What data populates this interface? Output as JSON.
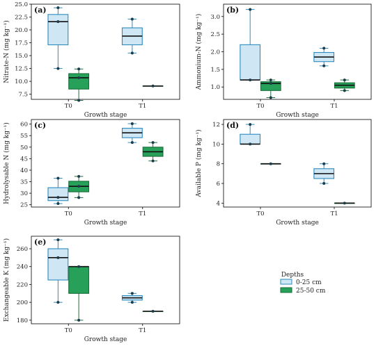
{
  "legend": {
    "title": "Depths",
    "entries": [
      {
        "label": "0-25 cm",
        "fill": "#cfe6f5",
        "stroke": "#2a8bbf"
      },
      {
        "label": "25-50 cm",
        "fill": "#27a05a",
        "stroke": "#1a6e3a"
      }
    ]
  },
  "colors": {
    "median": "#111111",
    "point": "#1d3b48"
  },
  "chart_data": [
    {
      "type": "box",
      "panel_label": "(a)",
      "xlabel": "Growth stage",
      "ylabel": "Nitrate-N (mg kg⁻¹)",
      "categories": [
        "T0",
        "T1"
      ],
      "ylim": [
        6.5,
        25
      ],
      "yticks": [
        7.5,
        10.0,
        12.5,
        15.0,
        17.5,
        20.0,
        22.5,
        25.0
      ],
      "tick_decimals": 1,
      "series": [
        {
          "name": "0-25 cm",
          "boxes": [
            {
              "category": "T0",
              "min": 12.5,
              "q1": 17.1,
              "median": 21.6,
              "q3": 23.0,
              "max": 24.3,
              "points": [
                12.5,
                21.6,
                24.3
              ]
            },
            {
              "category": "T1",
              "min": 15.5,
              "q1": 17.1,
              "median": 18.8,
              "q3": 20.4,
              "max": 22.1,
              "points": [
                15.5,
                22.1
              ]
            }
          ]
        },
        {
          "name": "25-50 cm",
          "boxes": [
            {
              "category": "T0",
              "min": 6.3,
              "q1": 8.5,
              "median": 10.7,
              "q3": 11.5,
              "max": 12.4,
              "points": [
                6.3,
                10.7,
                12.4
              ]
            },
            {
              "category": "T1",
              "min": 9.1,
              "q1": 9.1,
              "median": 9.1,
              "q3": 9.1,
              "max": 9.1,
              "points": [
                9.1
              ]
            }
          ]
        }
      ]
    },
    {
      "type": "box",
      "panel_label": "(b)",
      "xlabel": "Growth stage",
      "ylabel": "Ammonium-N (mg kg⁻¹)",
      "categories": [
        "T0",
        "T1"
      ],
      "ylim": [
        0.65,
        3.35
      ],
      "yticks": [
        1.0,
        1.5,
        2.0,
        2.5,
        3.0
      ],
      "tick_decimals": 1,
      "series": [
        {
          "name": "0-25 cm",
          "boxes": [
            {
              "category": "T0",
              "min": 1.2,
              "q1": 1.2,
              "median": 1.2,
              "q3": 2.2,
              "max": 3.2,
              "points": [
                1.2,
                3.2
              ]
            },
            {
              "category": "T1",
              "min": 1.6,
              "q1": 1.72,
              "median": 1.85,
              "q3": 1.98,
              "max": 2.1,
              "points": [
                1.6,
                2.1
              ]
            }
          ]
        },
        {
          "name": "25-50 cm",
          "boxes": [
            {
              "category": "T0",
              "min": 0.7,
              "q1": 0.9,
              "median": 1.1,
              "q3": 1.15,
              "max": 1.2,
              "points": [
                0.7,
                1.1,
                1.2
              ]
            },
            {
              "category": "T1",
              "min": 0.9,
              "q1": 0.97,
              "median": 1.05,
              "q3": 1.12,
              "max": 1.2,
              "points": [
                0.9,
                1.2
              ]
            }
          ]
        }
      ]
    },
    {
      "type": "box",
      "panel_label": "(c)",
      "xlabel": "Growth stage",
      "ylabel": "Hydrolysable N (mg kg⁻¹)",
      "categories": [
        "T0",
        "T1"
      ],
      "ylim": [
        24,
        62
      ],
      "yticks": [
        25,
        30,
        35,
        40,
        45,
        50,
        55,
        60
      ],
      "tick_decimals": 0,
      "series": [
        {
          "name": "0-25 cm",
          "boxes": [
            {
              "category": "T0",
              "min": 25.5,
              "q1": 26.8,
              "median": 28.2,
              "q3": 32.4,
              "max": 36.5,
              "points": [
                25.5,
                28.2,
                36.5
              ]
            },
            {
              "category": "T1",
              "min": 52.0,
              "q1": 54.1,
              "median": 56.2,
              "q3": 58.2,
              "max": 60.2,
              "points": [
                52.0,
                60.2
              ]
            }
          ]
        },
        {
          "name": "25-50 cm",
          "boxes": [
            {
              "category": "T0",
              "min": 28.1,
              "q1": 30.6,
              "median": 33.0,
              "q3": 35.2,
              "max": 37.3,
              "points": [
                28.1,
                33.0,
                37.3
              ]
            },
            {
              "category": "T1",
              "min": 44.0,
              "q1": 46.0,
              "median": 48.0,
              "q3": 50.0,
              "max": 52.0,
              "points": [
                44.0,
                52.0
              ]
            }
          ]
        }
      ]
    },
    {
      "type": "box",
      "panel_label": "(d)",
      "xlabel": "Growth stage",
      "ylabel": "Available P (mg kg⁻¹)",
      "categories": [
        "T0",
        "T1"
      ],
      "ylim": [
        3.6,
        12.5
      ],
      "yticks": [
        4,
        6,
        8,
        10,
        12
      ],
      "tick_decimals": 0,
      "series": [
        {
          "name": "0-25 cm",
          "boxes": [
            {
              "category": "T0",
              "min": 10.0,
              "q1": 10.0,
              "median": 10.0,
              "q3": 11.0,
              "max": 12.0,
              "points": [
                10.0,
                12.0
              ]
            },
            {
              "category": "T1",
              "min": 6.0,
              "q1": 6.5,
              "median": 7.0,
              "q3": 7.5,
              "max": 8.0,
              "points": [
                6.0,
                8.0
              ]
            }
          ]
        },
        {
          "name": "25-50 cm",
          "boxes": [
            {
              "category": "T0",
              "min": 8.0,
              "q1": 8.0,
              "median": 8.0,
              "q3": 8.0,
              "max": 8.0,
              "points": [
                8.0
              ]
            },
            {
              "category": "T1",
              "min": 4.0,
              "q1": 4.0,
              "median": 4.0,
              "q3": 4.0,
              "max": 4.0,
              "points": [
                4.0
              ]
            }
          ]
        }
      ]
    },
    {
      "type": "box",
      "panel_label": "(e)",
      "xlabel": "Growth stage",
      "ylabel": "Exchangeable K (mg kg⁻¹)",
      "categories": [
        "T0",
        "T1"
      ],
      "ylim": [
        176,
        274
      ],
      "yticks": [
        180,
        200,
        220,
        240,
        260
      ],
      "tick_decimals": 0,
      "series": [
        {
          "name": "0-25 cm",
          "boxes": [
            {
              "category": "T0",
              "min": 200,
              "q1": 225,
              "median": 250,
              "q3": 260,
              "max": 270,
              "points": [
                200,
                250,
                270
              ]
            },
            {
              "category": "T1",
              "min": 200,
              "q1": 202.5,
              "median": 205,
              "q3": 207.5,
              "max": 210,
              "points": [
                200,
                210
              ]
            }
          ]
        },
        {
          "name": "25-50 cm",
          "boxes": [
            {
              "category": "T0",
              "min": 180,
              "q1": 210,
              "median": 240,
              "q3": 240,
              "max": 240,
              "points": [
                180,
                240
              ]
            },
            {
              "category": "T1",
              "min": 190,
              "q1": 190,
              "median": 190,
              "q3": 190,
              "max": 190,
              "points": [
                190
              ]
            }
          ]
        }
      ]
    }
  ]
}
